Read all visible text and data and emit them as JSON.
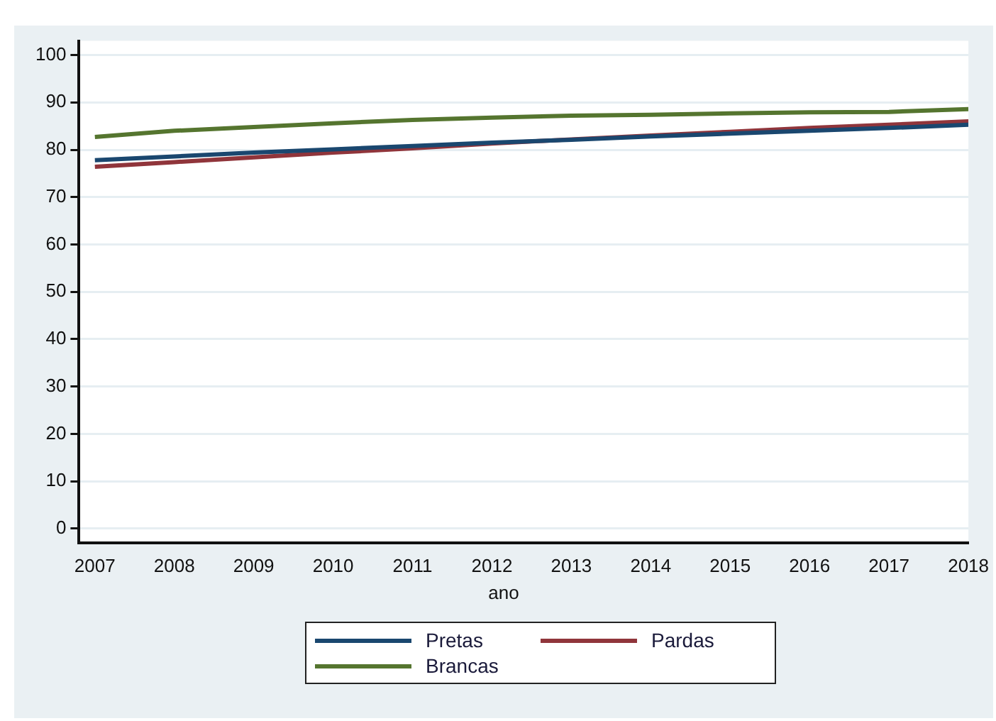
{
  "chart_data": {
    "type": "line",
    "xlabel": "ano",
    "x": [
      2007,
      2008,
      2009,
      2010,
      2011,
      2012,
      2013,
      2014,
      2015,
      2016,
      2017,
      2018
    ],
    "series": [
      {
        "name": "Pretas",
        "color": "#1a476f",
        "values": [
          77.8,
          78.6,
          79.4,
          80.1,
          80.8,
          81.5,
          82.1,
          82.8,
          83.4,
          84.0,
          84.6,
          85.3
        ]
      },
      {
        "name": "Pardas",
        "color": "#90353b",
        "values": [
          76.4,
          77.4,
          78.4,
          79.4,
          80.3,
          81.3,
          82.2,
          83.0,
          83.8,
          84.6,
          85.3,
          86.0
        ]
      },
      {
        "name": "Brancas",
        "color": "#55752f",
        "values": [
          82.7,
          84.0,
          84.8,
          85.6,
          86.3,
          86.8,
          87.2,
          87.4,
          87.7,
          87.9,
          88.0,
          88.6
        ]
      }
    ],
    "xlim": [
      2006.8,
      2018
    ],
    "xticks": [
      2007,
      2008,
      2009,
      2010,
      2011,
      2012,
      2013,
      2014,
      2015,
      2016,
      2017,
      2018
    ],
    "ylim": [
      -3,
      103
    ],
    "yticks": [
      0,
      10,
      20,
      30,
      40,
      50,
      60,
      70,
      80,
      90,
      100
    ],
    "grid": "y",
    "legend": "bottom",
    "marker": "none",
    "line_style": "solid"
  }
}
